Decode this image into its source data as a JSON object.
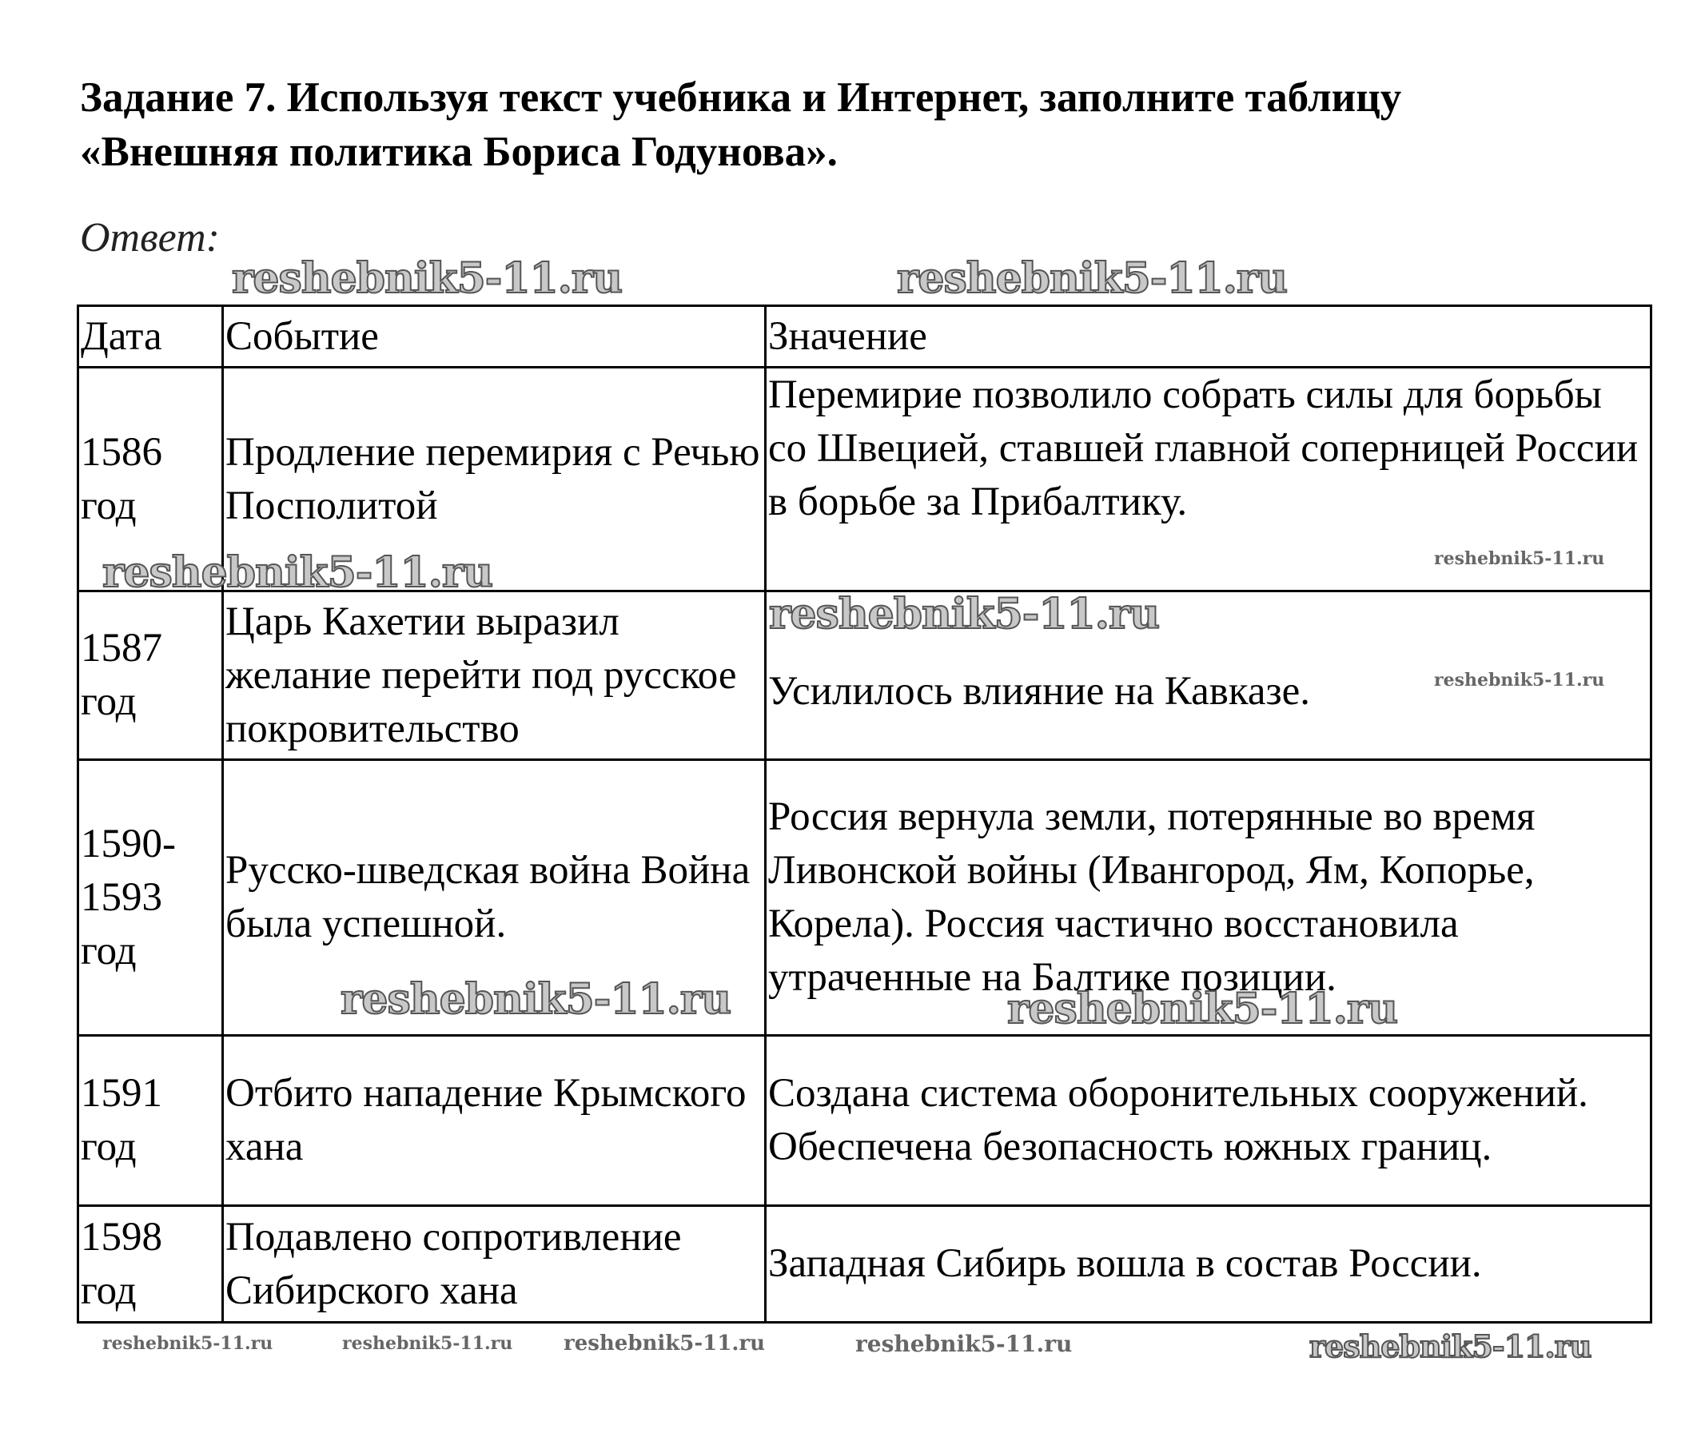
{
  "title": "Задание 7. Используя текст учебника и Интернет, заполните таблицу «Внешняя политика Бориса Годунова».",
  "answer_label": "Ответ:",
  "watermark": "reshebnik5-11.ru",
  "table": {
    "headers": [
      "Дата",
      "Событие",
      "Значение"
    ],
    "rows": [
      {
        "date": "1586 год",
        "event": "Продление перемирия с Речью Посполитой",
        "meaning": "Перемирие позволило собрать силы для борьбы со Швецией, ставшей главной соперницей России в борьбе за Прибалтику."
      },
      {
        "date": "1587 год",
        "event": "Царь Кахетии выразил желание перейти под русское покровительство",
        "meaning": "Усилилось влияние на Кавказе."
      },
      {
        "date": "1590-1593 год",
        "event": "Русско-шведская война Война была успешной.",
        "meaning": "Россия вернула земли, потерянные во время Ливонской войны (Ивангород, Ям, Копорье, Корела). Россия частично восстановила утраченные на Балтике позиции."
      },
      {
        "date": "1591 год",
        "event": "Отбито нападение Крымского хана",
        "meaning": "Создана система оборонительных сооружений. Обеспечена безопасность южных границ."
      },
      {
        "date": "1598 год",
        "event": "Подавлено сопротивление Сибирского хана",
        "meaning": "Западная Сибирь вошла в состав России."
      }
    ]
  }
}
